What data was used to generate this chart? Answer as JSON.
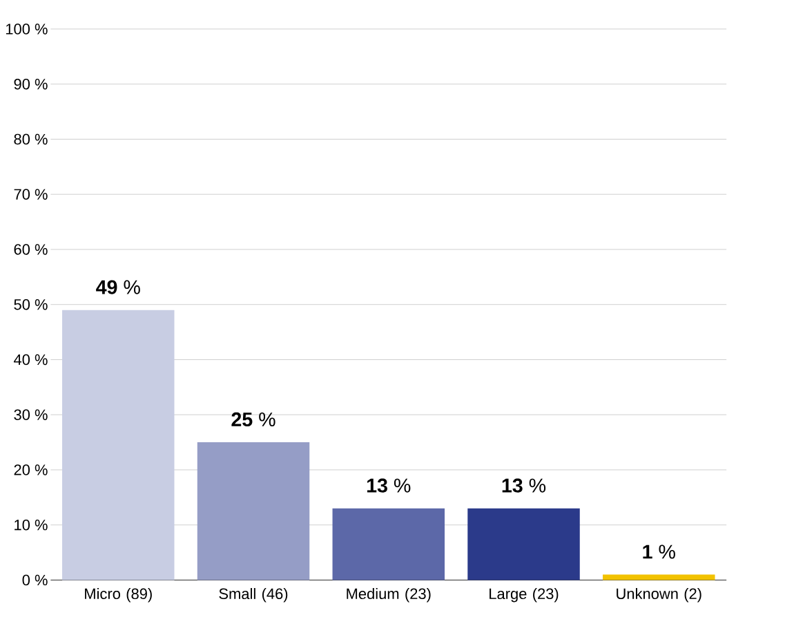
{
  "chart_data": {
    "type": "bar",
    "categories": [
      "Micro (89)",
      "Small (46)",
      "Medium (23)",
      "Large (23)",
      "Unknown (2)"
    ],
    "values": [
      49,
      25,
      13,
      13,
      1
    ],
    "colors": [
      "#c8cde3",
      "#959dc6",
      "#5c68a8",
      "#2b3a8a",
      "#f2c200"
    ],
    "value_labels": [
      "**49** %",
      "**25** %",
      "**13** %",
      "**13** %",
      "**1** %"
    ],
    "ylim": [
      0,
      100
    ],
    "yticks": [
      {
        "value": 0,
        "label": "0 %"
      },
      {
        "value": 10,
        "label": "10 %"
      },
      {
        "value": 20,
        "label": "20 %"
      },
      {
        "value": 30,
        "label": "30 %"
      },
      {
        "value": 40,
        "label": "40 %"
      },
      {
        "value": 50,
        "label": "50 %"
      },
      {
        "value": 60,
        "label": "60 %"
      },
      {
        "value": 70,
        "label": "70 %"
      },
      {
        "value": 80,
        "label": "80 %"
      },
      {
        "value": 90,
        "label": "90 %"
      },
      {
        "value": 100,
        "label": "100 %"
      }
    ],
    "grid": "y"
  }
}
